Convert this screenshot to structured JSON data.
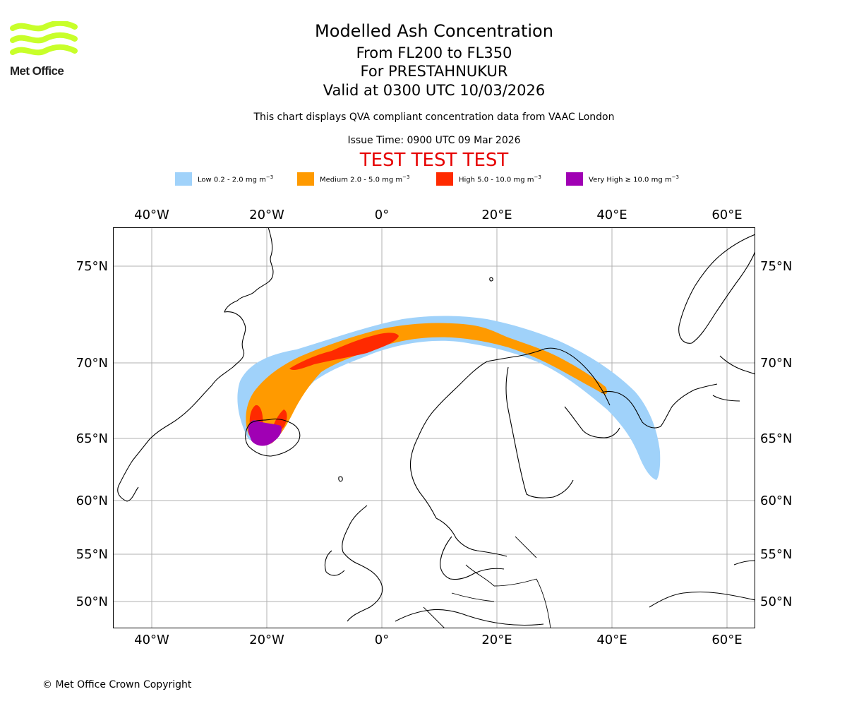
{
  "header": {
    "brand": "Met Office",
    "title": "Modelled Ash Concentration",
    "line_levels": "From FL200 to FL350",
    "line_volcano": "For PRESTAHNUKUR",
    "line_valid": "Valid at 0300 UTC 10/03/2026",
    "subtitle": "This chart displays QVA compliant concentration data from VAAC London",
    "issue_time": "Issue Time: 0900 UTC 09 Mar 2026",
    "test_banner": "TEST TEST TEST"
  },
  "legend": [
    {
      "label": "Low 0.2 - 2.0 mg m",
      "unit_sup": "−3",
      "color": "#a0d2fa"
    },
    {
      "label": "Medium 2.0 - 5.0 mg m",
      "unit_sup": "−3",
      "color": "#ff9a00"
    },
    {
      "label": "High 5.0 - 10.0 mg m",
      "unit_sup": "−3",
      "color": "#ff2a00"
    },
    {
      "label": "Very High ≥ 10.0 mg m",
      "unit_sup": "−3",
      "color": "#a000b4"
    }
  ],
  "map": {
    "lon_labels": [
      "40°W",
      "20°W",
      "0°",
      "20°E",
      "40°E",
      "60°E"
    ],
    "lat_labels": [
      "75°N",
      "70°N",
      "65°N",
      "60°N",
      "55°N",
      "50°N"
    ],
    "colors": {
      "grid": "#b0b0b0",
      "coast": "#000000",
      "frame": "#000000"
    }
  },
  "footer": {
    "copyright": "© Met Office Crown Copyright"
  }
}
